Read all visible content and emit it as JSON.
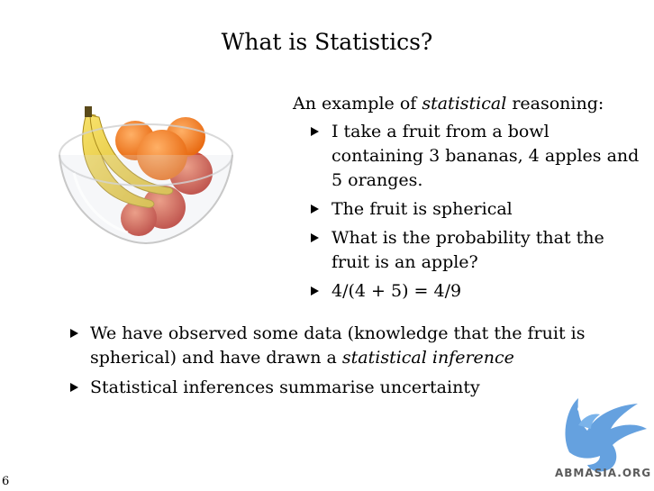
{
  "slide": {
    "title": "What is Statistics?",
    "page_number": "6"
  },
  "image": {
    "icon": "fruit-bowl-illustration"
  },
  "example": {
    "intro_before": "An example of ",
    "intro_em": "statistical",
    "intro_after": " reasoning:",
    "bullets": [
      "I take a fruit from a bowl containing 3 bananas, 4 apples and 5 oranges.",
      "The fruit is spherical",
      "What is the probability that the fruit is an apple?",
      "4/(4 + 5) = 4/9"
    ]
  },
  "conclusions": {
    "item1_before": "We have observed some data (knowledge that the fruit is spherical) and have drawn a ",
    "item1_em": "statistical inference",
    "item2": "Statistical inferences summarise uncertainty"
  },
  "watermark": {
    "text": "ABMASIA.ORG",
    "icon": "griffin-logo-icon",
    "color": "#4a90d9"
  }
}
